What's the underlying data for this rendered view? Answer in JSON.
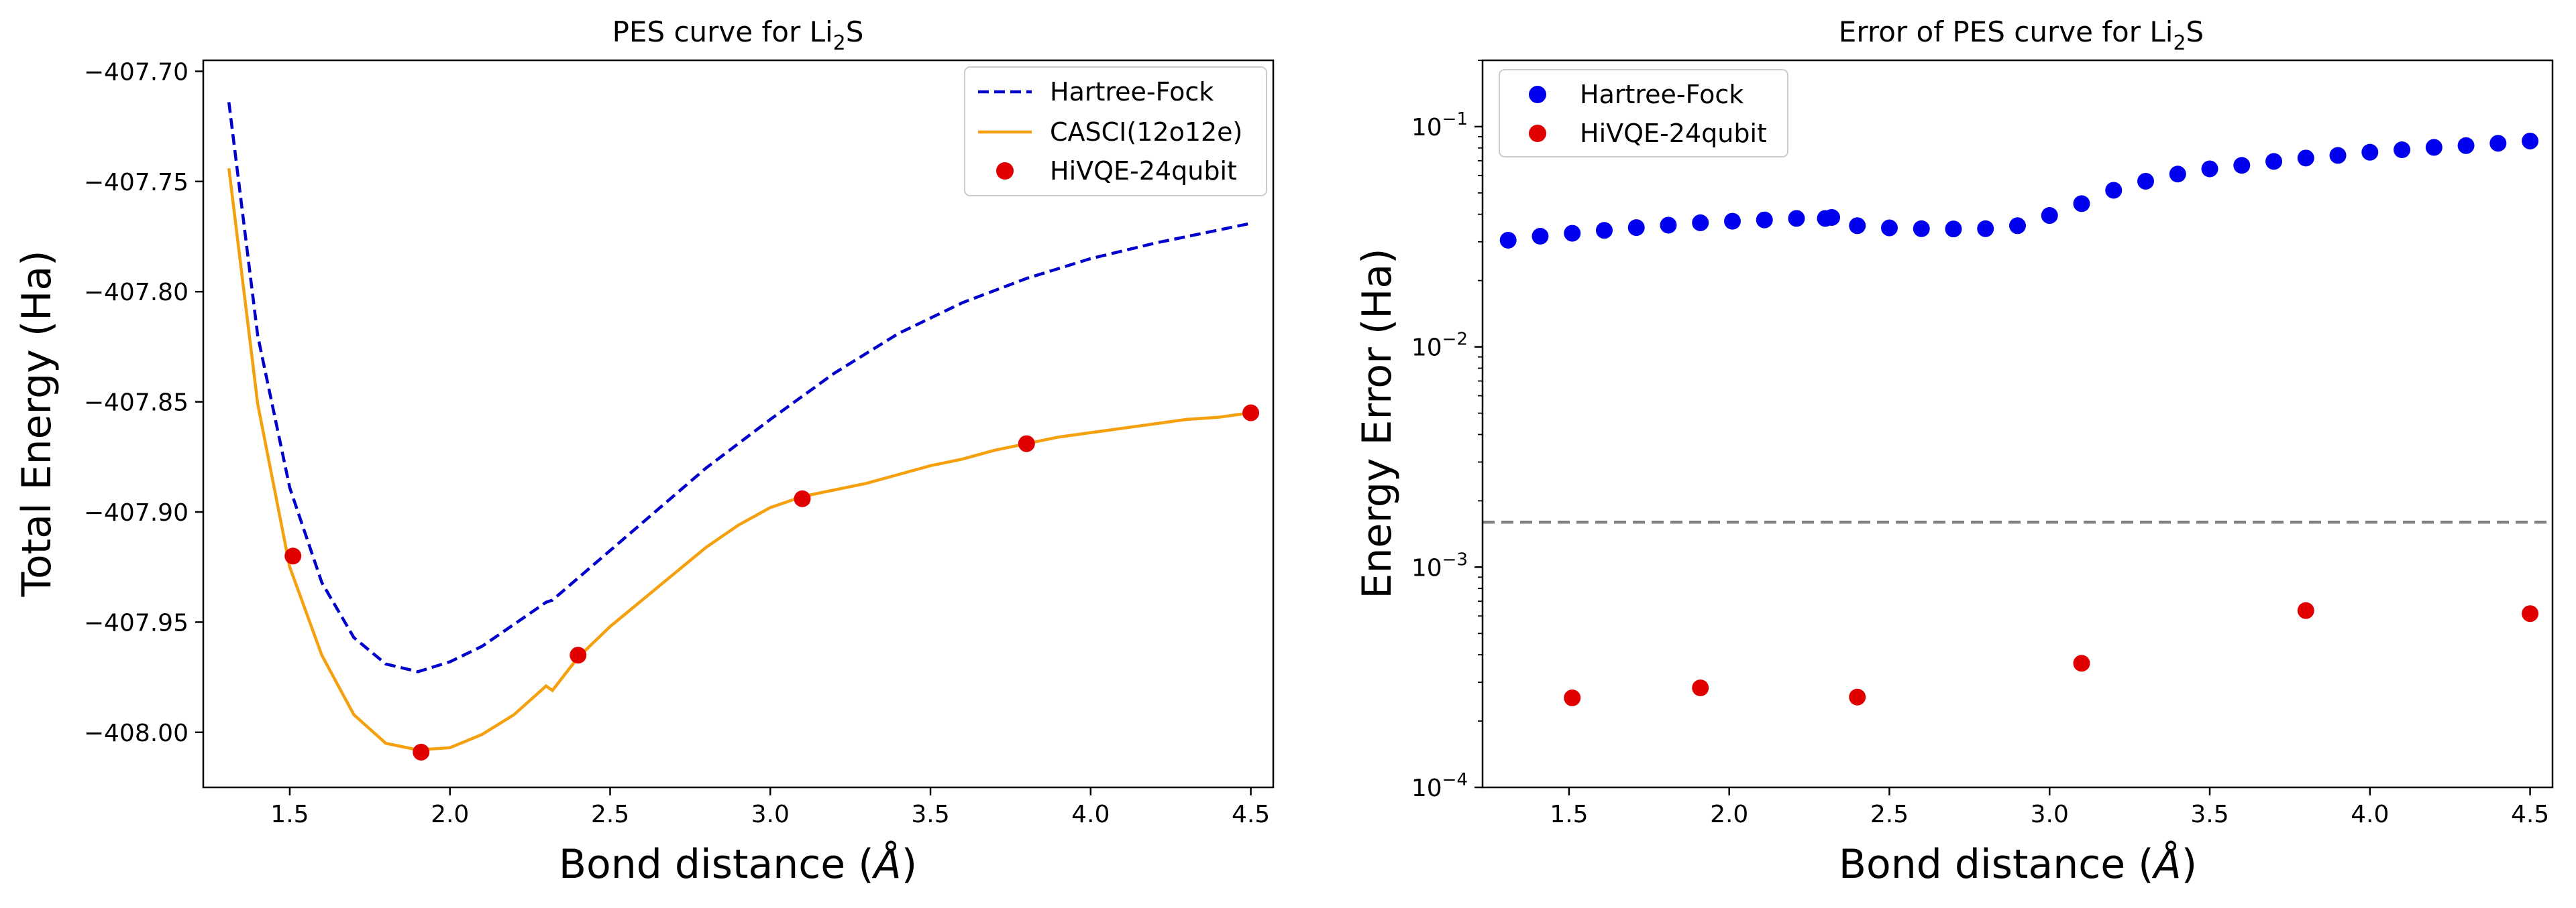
{
  "chart_data": [
    {
      "type": "line",
      "title": "PES curve for Li",
      "title_sub": "2",
      "title_suffix": "S",
      "xlabel": "Bond distance (",
      "xlabel_unit": "Å",
      "xlabel_end": ")",
      "ylabel": "Total Energy (Ha)",
      "xlim": [
        1.23,
        4.57
      ],
      "ylim": [
        -408.025,
        -407.695
      ],
      "xticks": [
        1.5,
        2.0,
        2.5,
        3.0,
        3.5,
        4.0,
        4.5
      ],
      "xtick_labels": [
        "1.5",
        "2.0",
        "2.5",
        "3.0",
        "3.5",
        "4.0",
        "4.5"
      ],
      "yticks": [
        -407.7,
        -407.75,
        -407.8,
        -407.85,
        -407.9,
        -407.95,
        -408.0
      ],
      "ytick_labels": [
        "−407.70",
        "−407.75",
        "−407.80",
        "−407.85",
        "−407.90",
        "−407.95",
        "−408.00"
      ],
      "legend_position": "top-right",
      "series": [
        {
          "name": "Hartree-Fock",
          "style": "dashed-line",
          "color": "#0000cc",
          "x": [
            1.31,
            1.4,
            1.5,
            1.6,
            1.7,
            1.8,
            1.9,
            2.0,
            2.1,
            2.2,
            2.3,
            2.32,
            2.4,
            2.6,
            2.8,
            3.0,
            3.2,
            3.4,
            3.6,
            3.8,
            4.0,
            4.2,
            4.5
          ],
          "y": [
            -407.714,
            -407.82,
            -407.889,
            -407.932,
            -407.957,
            -407.969,
            -407.9725,
            -407.968,
            -407.961,
            -407.951,
            -407.941,
            -407.94,
            -407.93,
            -407.905,
            -407.88,
            -407.858,
            -407.837,
            -407.819,
            -407.805,
            -407.794,
            -407.785,
            -407.778,
            -407.769
          ]
        },
        {
          "name": "CASCI(12o12e)",
          "style": "solid-line",
          "color": "#f5a00f",
          "x": [
            1.31,
            1.4,
            1.5,
            1.6,
            1.7,
            1.8,
            1.9,
            2.0,
            2.1,
            2.2,
            2.3,
            2.32,
            2.4,
            2.5,
            2.6,
            2.7,
            2.8,
            2.9,
            3.0,
            3.1,
            3.2,
            3.3,
            3.4,
            3.5,
            3.6,
            3.7,
            3.8,
            3.9,
            4.0,
            4.1,
            4.2,
            4.3,
            4.4,
            4.5
          ],
          "y": [
            -407.744,
            -407.851,
            -407.925,
            -407.965,
            -407.992,
            -408.005,
            -408.008,
            -408.007,
            -408.001,
            -407.992,
            -407.979,
            -407.981,
            -407.966,
            -407.952,
            -407.94,
            -407.928,
            -407.916,
            -407.906,
            -407.898,
            -407.893,
            -407.89,
            -407.887,
            -407.883,
            -407.879,
            -407.876,
            -407.872,
            -407.869,
            -407.866,
            -407.864,
            -407.862,
            -407.86,
            -407.858,
            -407.857,
            -407.855
          ]
        },
        {
          "name": "HiVQE-24qubit",
          "style": "scatter",
          "color": "#e00000",
          "x": [
            1.51,
            1.91,
            2.4,
            3.1,
            3.8,
            4.5
          ],
          "y": [
            -407.92,
            -408.009,
            -407.965,
            -407.894,
            -407.869,
            -407.855
          ]
        }
      ]
    },
    {
      "type": "scatter",
      "title": "Error of PES curve for Li",
      "title_sub": "2",
      "title_suffix": "S",
      "xlabel": "Bond distance (",
      "xlabel_unit": "Å",
      "xlabel_end": ")",
      "ylabel": "Energy Error (Ha)",
      "yscale": "log",
      "xlim": [
        1.23,
        4.57
      ],
      "ylim": [
        0.0001,
        0.2
      ],
      "xticks": [
        1.5,
        2.0,
        2.5,
        3.0,
        3.5,
        4.0,
        4.5
      ],
      "xtick_labels": [
        "1.5",
        "2.0",
        "2.5",
        "3.0",
        "3.5",
        "4.0",
        "4.5"
      ],
      "yticks": [
        0.0001,
        0.001,
        0.01,
        0.1
      ],
      "ytick_bases": [
        "10",
        "10",
        "10",
        "10"
      ],
      "ytick_exponents": [
        "−4",
        "−3",
        "−2",
        "−1"
      ],
      "hline_value": 0.0016,
      "hline_color": "#808080",
      "legend_position": "top-left",
      "series": [
        {
          "name": "Hartree-Fock",
          "color": "#0000ee",
          "x": [
            1.31,
            1.41,
            1.51,
            1.61,
            1.71,
            1.81,
            1.91,
            2.01,
            2.11,
            2.21,
            2.3,
            2.32,
            2.4,
            2.5,
            2.6,
            2.7,
            2.8,
            2.9,
            3.0,
            3.1,
            3.2,
            3.3,
            3.4,
            3.5,
            3.6,
            3.7,
            3.8,
            3.9,
            4.0,
            4.1,
            4.2,
            4.3,
            4.4,
            4.5
          ],
          "y": [
            0.0305,
            0.0318,
            0.0328,
            0.0338,
            0.0348,
            0.0357,
            0.0366,
            0.0372,
            0.0377,
            0.0383,
            0.0383,
            0.0387,
            0.0355,
            0.0347,
            0.0344,
            0.0343,
            0.0344,
            0.0355,
            0.0395,
            0.0447,
            0.0514,
            0.0565,
            0.0609,
            0.0643,
            0.0667,
            0.0695,
            0.072,
            0.074,
            0.0765,
            0.0785,
            0.0805,
            0.082,
            0.084,
            0.086
          ]
        },
        {
          "name": "HiVQE-24qubit",
          "color": "#e00000",
          "x": [
            1.51,
            1.91,
            2.4,
            3.1,
            3.8,
            4.5
          ],
          "y": [
            0.000255,
            0.000283,
            0.000257,
            0.000366,
            0.000635,
            0.000615
          ]
        }
      ]
    }
  ]
}
